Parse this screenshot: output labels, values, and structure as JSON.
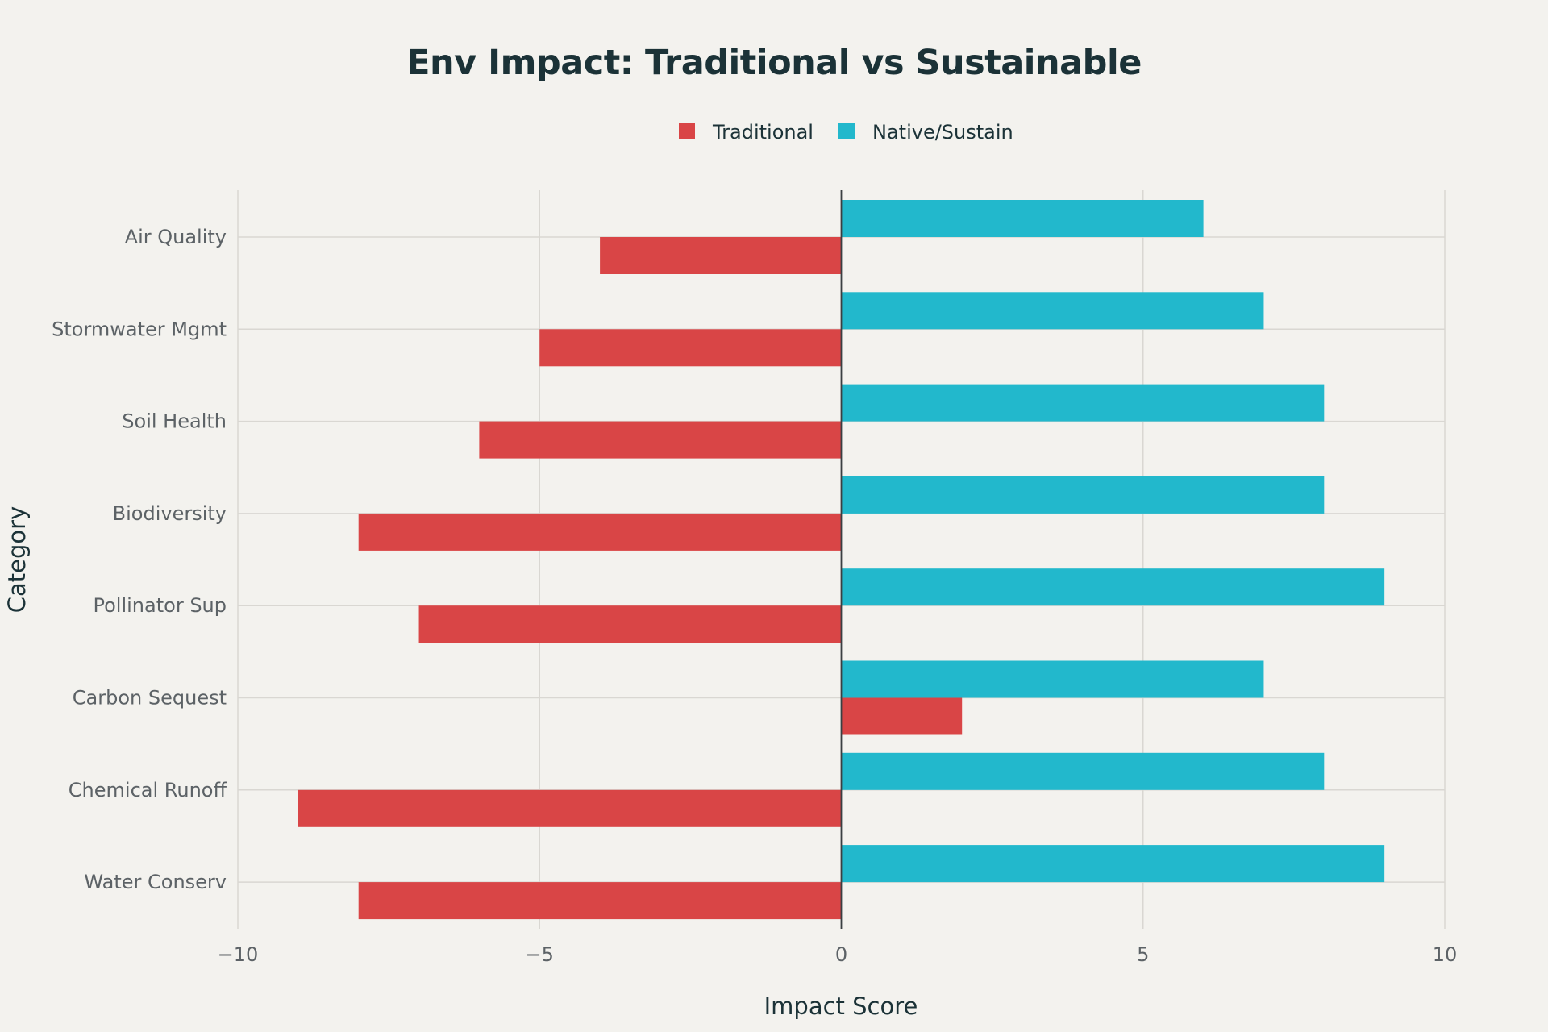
{
  "chart_data": {
    "type": "bar",
    "orientation": "horizontal",
    "title": "Env Impact: Traditional vs Sustainable",
    "xlabel": "Impact Score",
    "ylabel": "Category",
    "xlim": [
      -10,
      10
    ],
    "xticks": [
      -10,
      -5,
      0,
      5,
      10
    ],
    "xtick_labels": [
      "−10",
      "−5",
      "0",
      "5",
      "10"
    ],
    "grid": true,
    "legend_position": "top-center",
    "categories": [
      "Air Quality",
      "Stormwater Mgmt",
      "Soil Health",
      "Biodiversity",
      "Pollinator Sup",
      "Carbon Sequest",
      "Chemical Runoff",
      "Water Conserv"
    ],
    "series": [
      {
        "name": "Traditional",
        "color": "#d94546",
        "values": [
          -4,
          -5,
          -6,
          -8,
          -7,
          2,
          -9,
          -8
        ]
      },
      {
        "name": "Native/Sustain",
        "color": "#22b8cc",
        "values": [
          6,
          7,
          8,
          8,
          9,
          7,
          8,
          9
        ]
      }
    ]
  }
}
